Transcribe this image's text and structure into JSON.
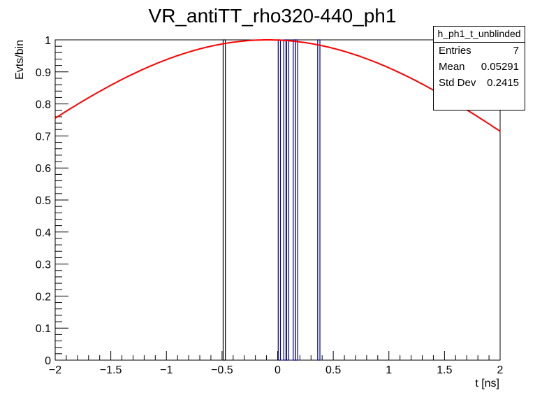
{
  "chart_data": {
    "type": "histogram",
    "title": "VR_antiTT_rho320-440_ph1",
    "xlabel": "t [ns]",
    "ylabel": "Evts/bin",
    "xlim": [
      -2,
      2
    ],
    "ylim": [
      0,
      1
    ],
    "x_ticks": [
      "−2",
      "−1.5",
      "−1",
      "−0.5",
      "0",
      "0.5",
      "1",
      "1.5",
      "2"
    ],
    "y_ticks": [
      "0",
      "0.1",
      "0.2",
      "0.3",
      "0.4",
      "0.5",
      "0.6",
      "0.7",
      "0.8",
      "0.9",
      "1"
    ],
    "grid": false,
    "series": [
      {
        "kind": "bars",
        "color": "#000000",
        "bins": [
          {
            "x": -0.48,
            "value": 1
          }
        ]
      },
      {
        "kind": "bars",
        "color": "#000080",
        "bins": [
          {
            "x": 0.015,
            "value": 1
          },
          {
            "x": 0.065,
            "value": 1
          },
          {
            "x": 0.09,
            "value": 1
          },
          {
            "x": 0.15,
            "value": 1
          },
          {
            "x": 0.17,
            "value": 1
          },
          {
            "x": 0.37,
            "value": 1
          }
        ]
      },
      {
        "kind": "curve",
        "color": "#ff0000",
        "function": "gaussian",
        "params": {
          "mean": -0.09,
          "sigma": 2.55
        }
      }
    ],
    "stats": {
      "title": "h_ph1_t_unblinded",
      "rows": [
        {
          "label": "Entries",
          "value": "7"
        },
        {
          "label": "Mean",
          "value": "0.05291"
        },
        {
          "label": "Std Dev",
          "value": "0.2415"
        }
      ]
    }
  }
}
